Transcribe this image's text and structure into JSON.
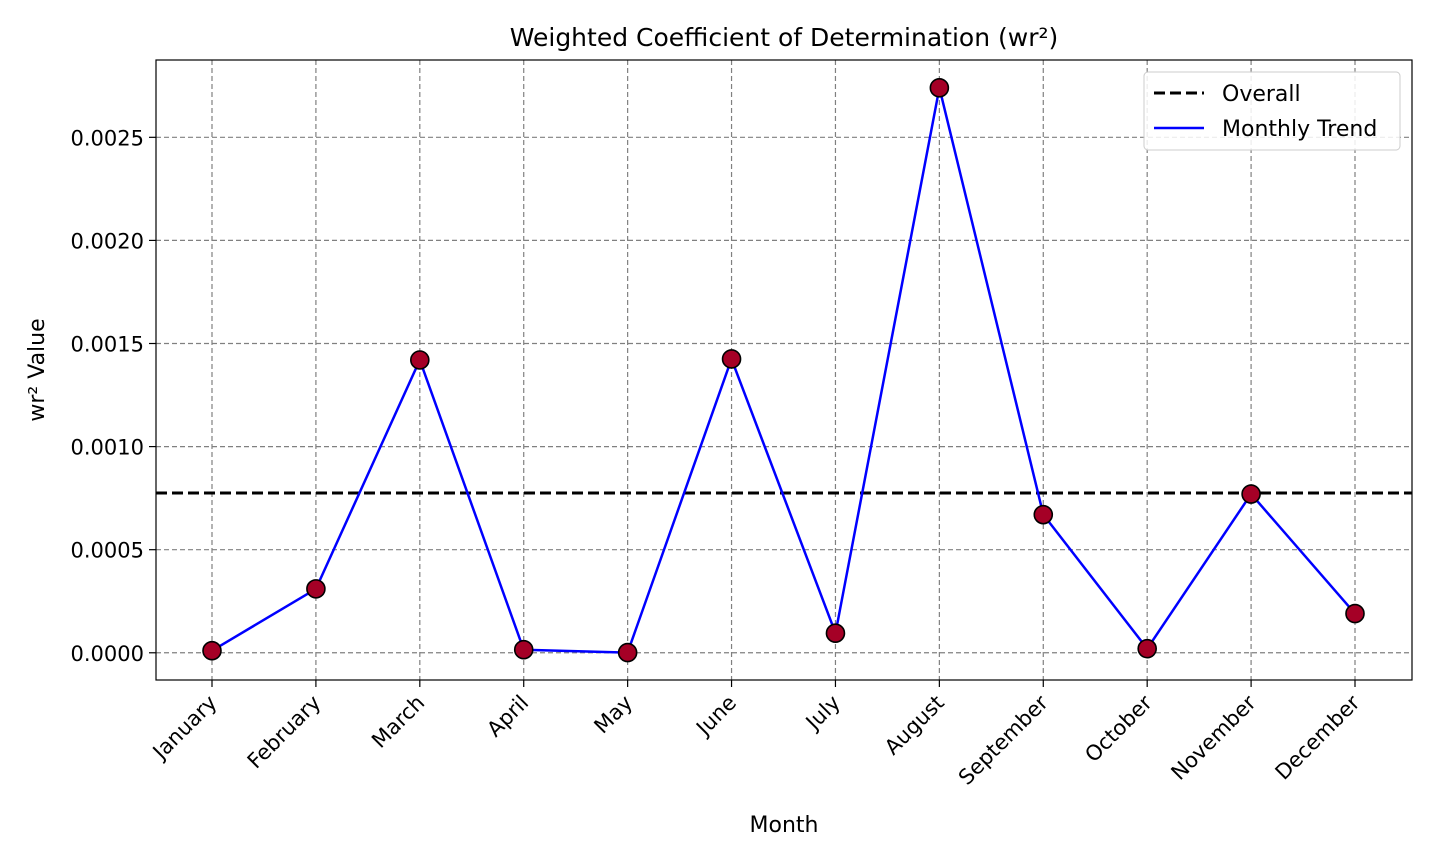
{
  "chart_data": {
    "type": "line",
    "title": "Weighted Coefficient of Determination (wr²)",
    "xlabel": "Month",
    "ylabel": "wr² Value",
    "categories": [
      "January",
      "February",
      "March",
      "April",
      "May",
      "June",
      "July",
      "August",
      "September",
      "October",
      "November",
      "December"
    ],
    "series": [
      {
        "name": "Monthly Trend",
        "color": "#0000ff",
        "marker_color": "#a50026",
        "values": [
          1e-05,
          0.00031,
          0.00142,
          1.5e-05,
          1e-06,
          0.001425,
          9.5e-05,
          0.00274,
          0.00067,
          2e-05,
          0.00077,
          0.00019
        ]
      }
    ],
    "overall": {
      "name": "Overall",
      "value": 0.000775,
      "color": "#000000"
    },
    "ylim": [
      -0.000132,
      0.002875
    ],
    "yticks": [
      0.0,
      0.0005,
      0.001,
      0.0015,
      0.002,
      0.0025
    ],
    "ytick_labels": [
      "0.0000",
      "0.0005",
      "0.0010",
      "0.0015",
      "0.0020",
      "0.0025"
    ],
    "grid": true,
    "legend_position": "top-right",
    "legend": [
      {
        "label": "Overall",
        "style": "dashed",
        "color": "#000000"
      },
      {
        "label": "Monthly Trend",
        "style": "solid",
        "color": "#0000ff"
      }
    ]
  }
}
